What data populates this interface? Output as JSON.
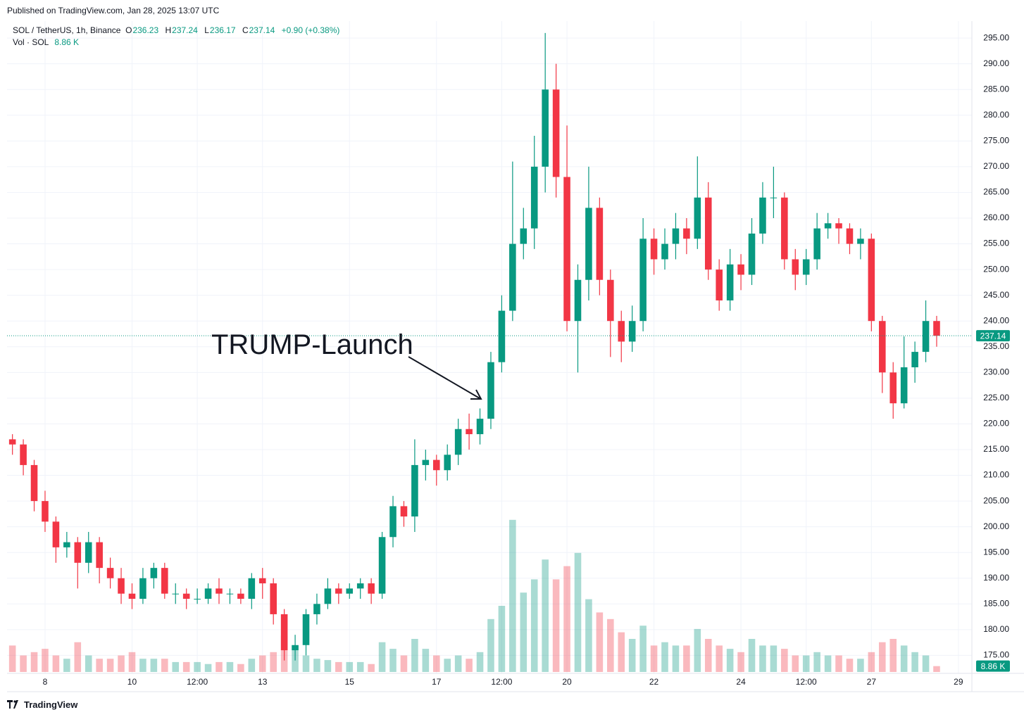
{
  "chart_data": {
    "type": "candlestick",
    "published": "Published on TradingView.com, Jan 28, 2025 13:07 UTC",
    "title": "SOL / TetherUS, 1h, Binance",
    "legend_keys": [
      "O",
      "H",
      "L",
      "C"
    ],
    "legend": {
      "open": 236.23,
      "high": 237.24,
      "low": 236.17,
      "close": 237.14,
      "change": "+0.90 (+0.38%)"
    },
    "annotation": "TRUMP-Launch",
    "footer": "TradingView",
    "up_color": "#089981",
    "down_color": "#f23645",
    "x": [
      7.25,
      7.5,
      7.75,
      8,
      8.25,
      8.5,
      8.75,
      9,
      9.25,
      9.5,
      9.75,
      10,
      10.25,
      10.5,
      10.75,
      11,
      11.25,
      11.5,
      11.75,
      12,
      12.25,
      12.5,
      12.75,
      13,
      13.25,
      13.5,
      13.75,
      14,
      14.25,
      14.5,
      14.75,
      15,
      15.25,
      15.5,
      15.75,
      16,
      16.25,
      16.5,
      16.75,
      17,
      17.25,
      17.5,
      17.75,
      18,
      18.25,
      18.5,
      18.75,
      19,
      19.25,
      19.5,
      19.75,
      20,
      20.25,
      20.5,
      20.75,
      21,
      21.25,
      21.5,
      21.75,
      22,
      22.25,
      22.5,
      22.75,
      23,
      23.25,
      23.5,
      23.75,
      24,
      24.25,
      24.5,
      24.75,
      25,
      25.25,
      25.5,
      25.75,
      26,
      26.25,
      26.5,
      26.75,
      27,
      27.25,
      27.5,
      27.75,
      28,
      28.25,
      28.5
    ],
    "open": [
      217,
      216,
      212,
      205,
      201,
      196,
      197,
      193,
      197,
      192,
      190,
      187,
      186,
      190,
      192,
      187,
      187,
      186,
      186,
      188,
      187,
      187,
      186,
      190,
      189,
      183,
      176,
      177,
      183,
      185,
      188,
      187,
      188,
      189,
      187,
      198,
      204,
      202,
      212,
      213,
      211,
      214,
      219,
      218,
      221,
      232,
      242,
      255,
      258,
      270,
      285,
      268,
      240,
      248,
      262,
      248,
      240,
      236,
      240,
      256,
      252,
      255,
      258,
      256,
      264,
      250,
      244,
      251,
      249,
      257,
      264,
      264,
      252,
      249,
      252,
      258,
      259,
      258,
      255,
      256,
      240,
      230,
      224,
      231,
      234,
      240
    ],
    "high": [
      218,
      217,
      213,
      207,
      202,
      199,
      198,
      199,
      198,
      194,
      192,
      189,
      192,
      193,
      193,
      189,
      188,
      188,
      189,
      190,
      188,
      188,
      191,
      192,
      190,
      184,
      179,
      184,
      187,
      190,
      189,
      189,
      190,
      190,
      199,
      206,
      205,
      217,
      215,
      214,
      216,
      221,
      222,
      223,
      234,
      245,
      271,
      262,
      276,
      296,
      290,
      278,
      251,
      270,
      264,
      250,
      242,
      243,
      260,
      258,
      258,
      261,
      260,
      272,
      267,
      252,
      254,
      253,
      260,
      267,
      270,
      265,
      254,
      254,
      261,
      261,
      260,
      259,
      258,
      257,
      241,
      232,
      237,
      236,
      244,
      241
    ],
    "low": [
      214,
      210,
      203,
      199,
      193,
      194,
      188,
      191,
      189,
      188,
      185,
      184,
      185,
      188,
      186,
      185,
      184,
      185,
      185,
      185,
      185,
      185,
      184,
      186,
      181,
      174,
      174,
      175,
      181,
      184,
      185,
      186,
      186,
      185,
      186,
      196,
      200,
      199,
      209,
      208,
      209,
      212,
      215,
      216,
      219,
      230,
      240,
      252,
      254,
      265,
      264,
      238,
      230,
      244,
      245,
      233,
      232,
      234,
      238,
      249,
      250,
      252,
      253,
      254,
      248,
      242,
      242,
      246,
      247,
      255,
      260,
      250,
      246,
      247,
      250,
      256,
      255,
      253,
      252,
      238,
      226,
      221,
      223,
      228,
      232,
      235
    ],
    "close": [
      216,
      212,
      205,
      201,
      196,
      197,
      193,
      197,
      192,
      190,
      187,
      186,
      190,
      192,
      187,
      187,
      186,
      186,
      188,
      187,
      187,
      186,
      190,
      189,
      183,
      176,
      177,
      183,
      185,
      188,
      187,
      188,
      189,
      187,
      198,
      204,
      202,
      212,
      213,
      211,
      214,
      219,
      218,
      221,
      232,
      242,
      255,
      258,
      270,
      285,
      268,
      240,
      248,
      262,
      248,
      240,
      236,
      240,
      256,
      252,
      255,
      258,
      256,
      264,
      250,
      244,
      251,
      249,
      257,
      264,
      264,
      252,
      249,
      252,
      258,
      259,
      258,
      255,
      256,
      240,
      230,
      224,
      231,
      234,
      240,
      237.14
    ],
    "volume": {
      "name": "Vol · SOL",
      "last_label": "8.86 K",
      "lim": [
        0,
        250000
      ],
      "values": [
        40000,
        25000,
        30000,
        35000,
        25000,
        20000,
        45000,
        25000,
        20000,
        20000,
        25000,
        30000,
        20000,
        20000,
        20000,
        15000,
        15000,
        15000,
        12000,
        15000,
        15000,
        12000,
        20000,
        25000,
        30000,
        55000,
        40000,
        25000,
        20000,
        18000,
        15000,
        15000,
        15000,
        12000,
        45000,
        35000,
        25000,
        50000,
        35000,
        25000,
        20000,
        25000,
        20000,
        30000,
        80000,
        100000,
        230000,
        120000,
        140000,
        170000,
        140000,
        160000,
        180000,
        110000,
        90000,
        80000,
        60000,
        50000,
        70000,
        40000,
        45000,
        40000,
        40000,
        65000,
        50000,
        40000,
        35000,
        30000,
        50000,
        40000,
        40000,
        35000,
        25000,
        25000,
        30000,
        25000,
        25000,
        20000,
        20000,
        30000,
        45000,
        50000,
        40000,
        30000,
        25000,
        8860
      ]
    },
    "xlim": [
      7.126,
      29.31
    ],
    "xticks": [
      8,
      10,
      {
        "value": 11.5,
        "label": "12:00"
      },
      13,
      15,
      17,
      {
        "value": 18.5,
        "label": "12:00"
      },
      20,
      22,
      24,
      {
        "value": 25.5,
        "label": "12:00"
      },
      27,
      29
    ],
    "ylim": [
      171.5,
      298.3
    ],
    "yticks": [
      {
        "value": 175,
        "label": "175.00"
      },
      {
        "value": 180,
        "label": "180.00"
      },
      {
        "value": 185,
        "label": "185.00"
      },
      {
        "value": 190,
        "label": "190.00"
      },
      {
        "value": 195,
        "label": "195.00"
      },
      {
        "value": 200,
        "label": "200.00"
      },
      {
        "value": 205,
        "label": "205.00"
      },
      {
        "value": 210,
        "label": "210.00"
      },
      {
        "value": 215,
        "label": "215.00"
      },
      {
        "value": 220,
        "label": "220.00"
      },
      {
        "value": 225,
        "label": "225.00"
      },
      {
        "value": 230,
        "label": "230.00"
      },
      {
        "value": 235,
        "label": "235.00"
      },
      {
        "value": 240,
        "label": "240.00"
      },
      {
        "value": 245,
        "label": "245.00"
      },
      {
        "value": 250,
        "label": "250.00"
      },
      {
        "value": 255,
        "label": "255.00"
      },
      {
        "value": 260,
        "label": "260.00"
      },
      {
        "value": 265,
        "label": "265.00"
      },
      {
        "value": 270,
        "label": "270.00"
      },
      {
        "value": 275,
        "label": "275.00"
      },
      {
        "value": 280,
        "label": "280.00"
      },
      {
        "value": 285,
        "label": "285.00"
      },
      {
        "value": 290,
        "label": "290.00"
      },
      {
        "value": 295,
        "label": "295.00"
      }
    ],
    "grid": true
  }
}
